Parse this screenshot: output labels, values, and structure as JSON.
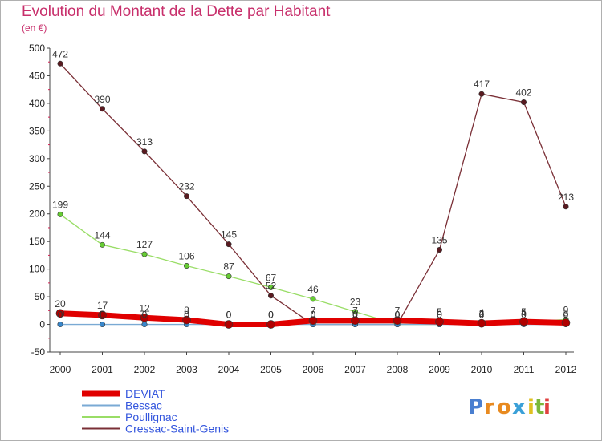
{
  "chart_data": {
    "type": "line",
    "title": "Evolution du Montant de la Dette par Habitant",
    "subtitle": "(en €)",
    "x": [
      "2000",
      "2001",
      "2002",
      "2003",
      "2004",
      "2005",
      "2006",
      "2007",
      "2008",
      "2009",
      "2010",
      "2011",
      "2012"
    ],
    "ylim": [
      -50,
      500
    ],
    "yticks": [
      -50,
      0,
      50,
      100,
      150,
      200,
      250,
      300,
      350,
      400,
      450,
      500
    ],
    "grid": false,
    "legend_position": "bottom-left",
    "series": [
      {
        "name": "DEVIAT",
        "color": "#e00000",
        "marker": "#b00000",
        "values": [
          20,
          17,
          12,
          8,
          0,
          0,
          7,
          7,
          7,
          5,
          2,
          5,
          3
        ]
      },
      {
        "name": "Bessac",
        "color": "#7aaad4",
        "marker": "#3a88cc",
        "values": [
          0,
          0,
          0,
          0,
          0,
          0,
          0,
          0,
          0,
          0,
          0,
          0,
          0
        ]
      },
      {
        "name": "Poullignac",
        "color": "#99dd66",
        "marker": "#66cc33",
        "values": [
          199,
          144,
          127,
          106,
          87,
          67,
          46,
          23,
          0,
          0,
          4,
          4,
          9
        ]
      },
      {
        "name": "Cressac-Saint-Genis",
        "color": "#7a2f36",
        "marker": "#5a1a20",
        "values": [
          472,
          390,
          313,
          232,
          145,
          52,
          0,
          0,
          0,
          135,
          417,
          402,
          213
        ]
      }
    ]
  },
  "logo": {
    "text": "Proxiti",
    "letters": [
      "P",
      "r",
      "o",
      "x",
      "i",
      "t",
      "i"
    ]
  }
}
